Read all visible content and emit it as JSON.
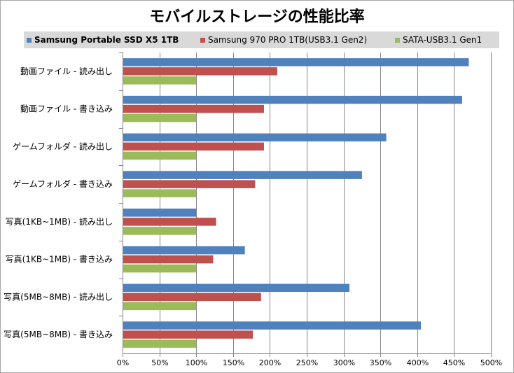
{
  "chart_data": {
    "type": "bar",
    "orientation": "horizontal",
    "title": "モバイルストレージの性能比率",
    "categories": [
      "動画ファイル  - 読み出し",
      "動画ファイル  - 書き込み",
      "ゲームフォルダ  - 読み出し",
      "ゲームフォルダ  - 書き込み",
      "写真(1KB~1MB) - 読み出し",
      "写真(1KB~1MB) - 書き込み",
      "写真(5MB~8MB) - 読み出し",
      "写真(5MB~8MB) - 書き込み"
    ],
    "series": [
      {
        "name": "Samsung Portable SSD X5 1TB",
        "color": "#4f81bd",
        "values": [
          470,
          461,
          358,
          325,
          100,
          166,
          308,
          405
        ]
      },
      {
        "name": "Samsung 970 PRO 1TB(USB3.1 Gen2)",
        "color": "#c0504d",
        "values": [
          210,
          192,
          192,
          180,
          127,
          123,
          188,
          177
        ]
      },
      {
        "name": "SATA-USB3.1 Gen1",
        "color": "#9bbb59",
        "values": [
          100,
          100,
          100,
          100,
          100,
          100,
          100,
          100
        ]
      }
    ],
    "xlim": [
      0,
      500
    ],
    "xticks": [
      "0%",
      "50%",
      "100%",
      "150%",
      "200%",
      "250%",
      "300%",
      "350%",
      "400%",
      "450%",
      "500%"
    ],
    "grid": true,
    "legend_position": "top"
  }
}
